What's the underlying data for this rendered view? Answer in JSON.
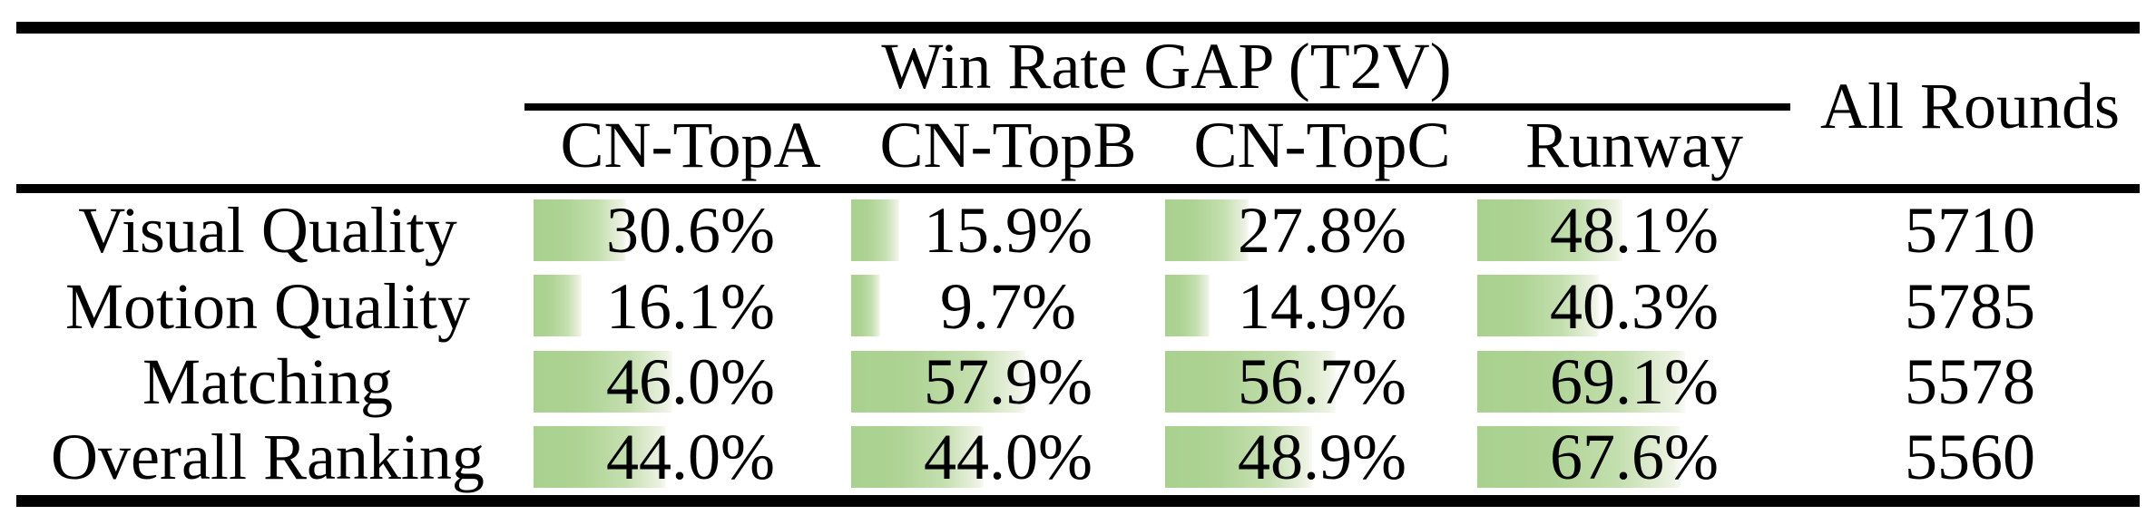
{
  "table": {
    "title": "Win Rate GAP (T2V)",
    "all_rounds_header": "All Rounds",
    "columns": [
      "CN-TopA",
      "CN-TopB",
      "CN-TopC",
      "Runway"
    ],
    "rows": [
      {
        "label": "Visual Quality",
        "cells": [
          {
            "display": "30.6%",
            "value": 30.6
          },
          {
            "display": "15.9%",
            "value": 15.9
          },
          {
            "display": "27.8%",
            "value": 27.8
          },
          {
            "display": "48.1%",
            "value": 48.1
          }
        ],
        "rounds": "5710"
      },
      {
        "label": "Motion Quality",
        "cells": [
          {
            "display": "16.1%",
            "value": 16.1
          },
          {
            "display": "9.7%",
            "value": 9.7
          },
          {
            "display": "14.9%",
            "value": 14.9
          },
          {
            "display": "40.3%",
            "value": 40.3
          }
        ],
        "rounds": "5785"
      },
      {
        "label": "Matching",
        "cells": [
          {
            "display": "46.0%",
            "value": 46.0
          },
          {
            "display": "57.9%",
            "value": 57.9
          },
          {
            "display": "56.7%",
            "value": 56.7
          },
          {
            "display": "69.1%",
            "value": 69.1
          }
        ],
        "rounds": "5578"
      },
      {
        "label": "Overall Ranking",
        "cells": [
          {
            "display": "44.0%",
            "value": 44.0
          },
          {
            "display": "44.0%",
            "value": 44.0
          },
          {
            "display": "48.9%",
            "value": 48.9
          },
          {
            "display": "67.6%",
            "value": 67.6
          }
        ],
        "rounds": "5560"
      }
    ],
    "bar_color": "#a9d18e",
    "rule_color": "#000000",
    "background_color": "#ffffff"
  }
}
